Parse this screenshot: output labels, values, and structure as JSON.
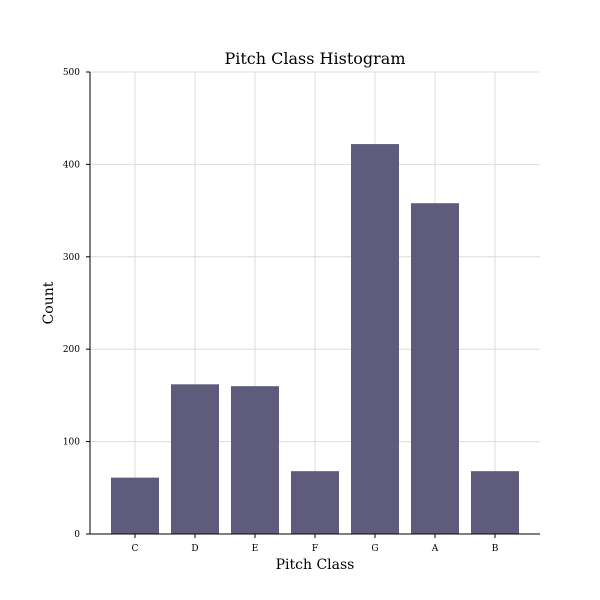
{
  "chart_data": {
    "type": "bar",
    "title": "Pitch Class Histogram",
    "xlabel": "Pitch Class",
    "ylabel": "Count",
    "categories": [
      "C",
      "D",
      "E",
      "F",
      "G",
      "A",
      "B"
    ],
    "values": [
      61,
      162,
      160,
      68,
      422,
      358,
      68
    ],
    "ylim": [
      0,
      500
    ],
    "yticks": [
      0,
      100,
      200,
      300,
      400,
      500
    ],
    "grid": true,
    "bar_color": "#5f5b7c"
  }
}
